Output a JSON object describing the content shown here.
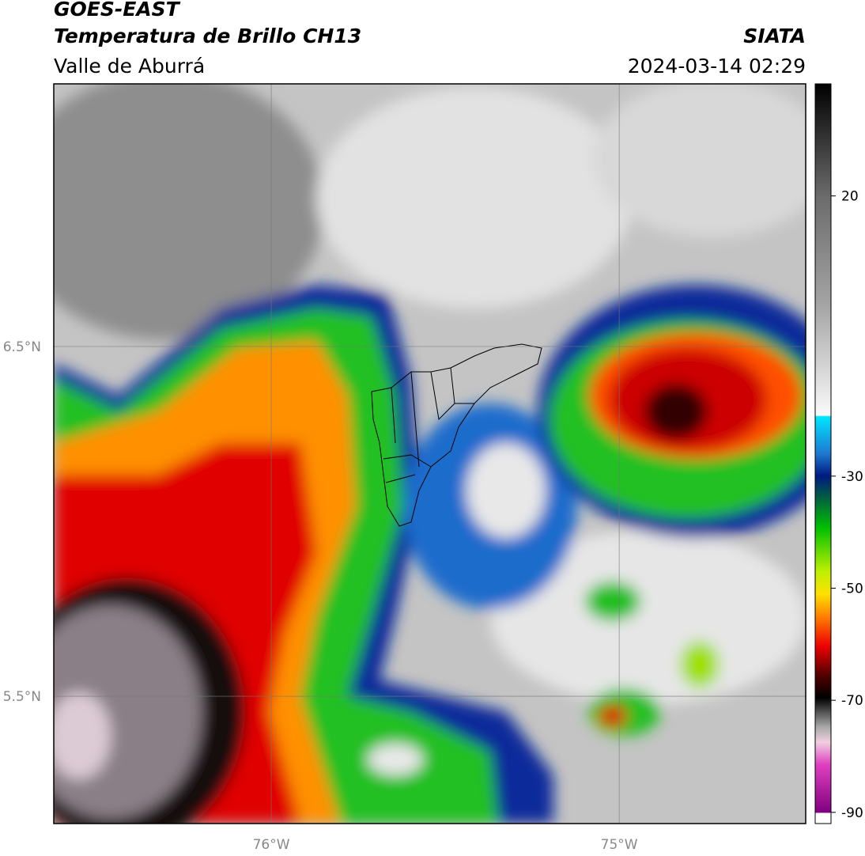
{
  "header": {
    "title": "GOES-EAST",
    "subtitle": "Temperatura de Brillo CH13",
    "region": "Valle de Aburrá",
    "agency": "SIATA",
    "datetime": "2024-03-14 02:29"
  },
  "map": {
    "xlim": [
      -76.625,
      -74.464
    ],
    "ylim": [
      5.136,
      7.251
    ],
    "xticks": [
      {
        "value": -76,
        "label": "76°W"
      },
      {
        "value": -75,
        "label": "75°W"
      }
    ],
    "yticks": [
      {
        "value": 6.5,
        "label": "6.5°N"
      },
      {
        "value": 5.5,
        "label": "5.5°N"
      }
    ],
    "grid": true
  },
  "colorbar": {
    "lim": [
      -92,
      40
    ],
    "ticks": [
      20,
      -30,
      -50,
      -70,
      -90
    ]
  }
}
